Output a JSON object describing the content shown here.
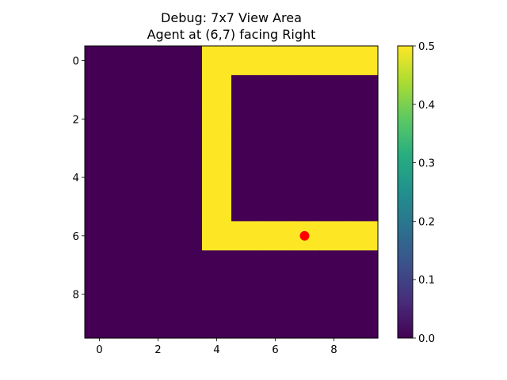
{
  "chart_data": {
    "type": "heatmap",
    "title_lines": [
      "Debug: 7x7 View Area",
      "Agent at (6,7) facing Right"
    ],
    "xlabel": "",
    "ylabel": "",
    "x_ticks": [
      0,
      2,
      4,
      6,
      8
    ],
    "y_ticks": [
      0,
      2,
      4,
      6,
      8
    ],
    "xlim": [
      -0.5,
      9.5
    ],
    "ylim": [
      9.5,
      -0.5
    ],
    "grid": [
      [
        0,
        0,
        0,
        0,
        0.5,
        0.5,
        0.5,
        0.5,
        0.5,
        0.5
      ],
      [
        0,
        0,
        0,
        0,
        0.5,
        0,
        0,
        0,
        0,
        0
      ],
      [
        0,
        0,
        0,
        0,
        0.5,
        0,
        0,
        0,
        0,
        0
      ],
      [
        0,
        0,
        0,
        0,
        0.5,
        0,
        0,
        0,
        0,
        0
      ],
      [
        0,
        0,
        0,
        0,
        0.5,
        0,
        0,
        0,
        0,
        0
      ],
      [
        0,
        0,
        0,
        0,
        0.5,
        0,
        0,
        0,
        0,
        0
      ],
      [
        0,
        0,
        0,
        0,
        0.5,
        0.5,
        0.5,
        0.5,
        0.5,
        0.5
      ],
      [
        0,
        0,
        0,
        0,
        0,
        0,
        0,
        0,
        0,
        0
      ],
      [
        0,
        0,
        0,
        0,
        0,
        0,
        0,
        0,
        0,
        0
      ],
      [
        0,
        0,
        0,
        0,
        0,
        0,
        0,
        0,
        0,
        0
      ]
    ],
    "marker": {
      "x": 7,
      "y": 6,
      "color": "#ff0000"
    },
    "colorbar": {
      "colormap": "viridis",
      "vmin": 0.0,
      "vmax": 0.5,
      "ticks": [
        "0.0",
        "0.1",
        "0.2",
        "0.3",
        "0.4",
        "0.5"
      ]
    }
  }
}
